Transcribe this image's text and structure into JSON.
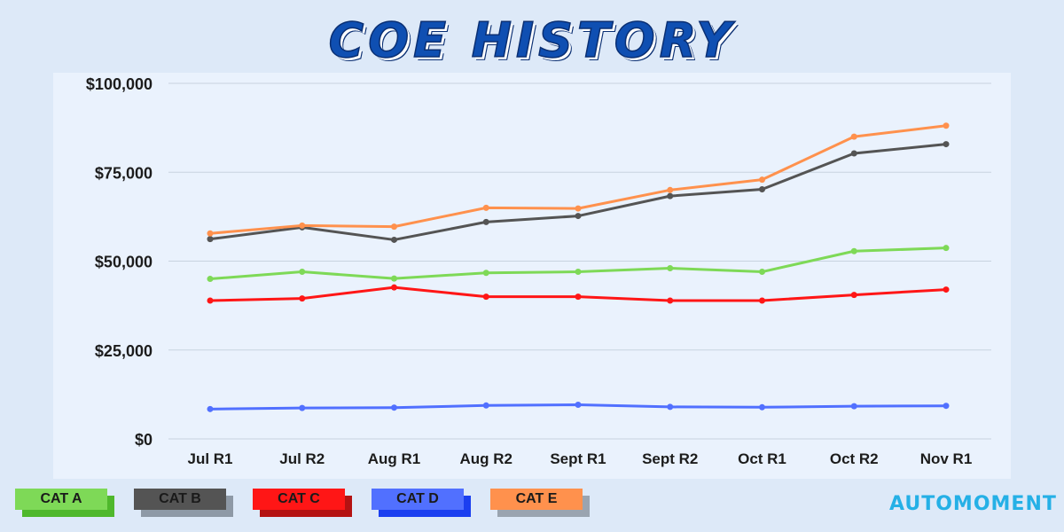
{
  "header": {
    "title": "COE HISTORY"
  },
  "brand": {
    "name": "AUTOMOMENT",
    "color": "#25b0e6"
  },
  "chart_data": {
    "type": "line",
    "title": "COE HISTORY",
    "xlabel": "",
    "ylabel": "",
    "categories": [
      "Jul R1",
      "Jul R2",
      "Aug R1",
      "Aug R2",
      "Sept R1",
      "Sept R2",
      "Oct R1",
      "Oct R2",
      "Nov R1"
    ],
    "ylim": [
      0,
      100000
    ],
    "yticks": [
      0,
      25000,
      50000,
      75000,
      100000
    ],
    "ytick_labels": [
      "$0",
      "$25,000",
      "$50,000",
      "$75,000",
      "$100,000"
    ],
    "grid": true,
    "legend_position": "bottom-left",
    "series": [
      {
        "name": "CAT A",
        "color": "#7ed957",
        "shadow": "#4fb82c",
        "values": [
          45000,
          47000,
          45100,
          46700,
          47000,
          48000,
          47000,
          52800,
          53700
        ]
      },
      {
        "name": "CAT B",
        "color": "#545454",
        "shadow": "#8e99a6",
        "values": [
          56200,
          59500,
          56000,
          61000,
          62700,
          68300,
          70200,
          80300,
          82900
        ]
      },
      {
        "name": "CAT C",
        "color": "#ff1616",
        "shadow": "#b41212",
        "values": [
          38900,
          39500,
          42600,
          40000,
          40000,
          38900,
          38900,
          40500,
          42000
        ]
      },
      {
        "name": "CAT D",
        "color": "#5170ff",
        "shadow": "#1b3ff0",
        "values": [
          8400,
          8700,
          8800,
          9400,
          9600,
          9000,
          8900,
          9200,
          9300
        ]
      },
      {
        "name": "CAT E",
        "color": "#ff914d",
        "shadow": "#9aa4b0",
        "values": [
          57800,
          60000,
          59700,
          65000,
          64800,
          70000,
          72900,
          85000,
          88100
        ]
      }
    ]
  }
}
